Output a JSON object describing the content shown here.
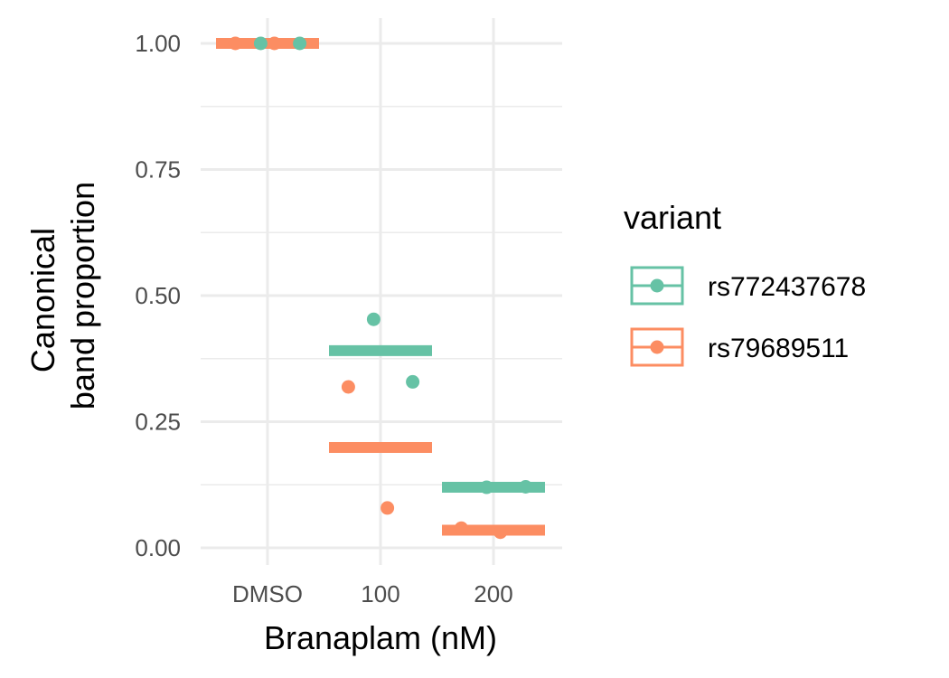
{
  "chart_data": {
    "type": "scatter",
    "title": "",
    "xlabel": "Branaplam (nM)",
    "ylabel_lines": [
      "Canonical",
      "band proportion"
    ],
    "categories": [
      "DMSO",
      "100",
      "200"
    ],
    "ylim": [
      0,
      1
    ],
    "y_ticks": [
      "0.00",
      "0.25",
      "0.50",
      "0.75",
      "1.00"
    ],
    "grid": true,
    "legend": {
      "title": "variant",
      "position": "right"
    },
    "series": [
      {
        "name": "rs772437678",
        "color": "#66c2a5",
        "points": [
          {
            "category": "DMSO",
            "y": 1.0
          },
          {
            "category": "DMSO",
            "y": 1.0
          },
          {
            "category": "100",
            "y": 0.453
          },
          {
            "category": "100",
            "y": 0.329
          },
          {
            "category": "200",
            "y": 0.12
          },
          {
            "category": "200",
            "y": 0.121
          }
        ],
        "means": [
          {
            "category": "DMSO",
            "y": 1.0
          },
          {
            "category": "100",
            "y": 0.391
          },
          {
            "category": "200",
            "y": 0.12
          }
        ]
      },
      {
        "name": "rs79689511",
        "color": "#fc8d62",
        "points": [
          {
            "category": "DMSO",
            "y": 1.0
          },
          {
            "category": "DMSO",
            "y": 1.0
          },
          {
            "category": "100",
            "y": 0.319
          },
          {
            "category": "100",
            "y": 0.079
          },
          {
            "category": "200",
            "y": 0.039
          },
          {
            "category": "200",
            "y": 0.031
          }
        ],
        "means": [
          {
            "category": "DMSO",
            "y": 1.0
          },
          {
            "category": "100",
            "y": 0.199
          },
          {
            "category": "200",
            "y": 0.035
          }
        ]
      }
    ]
  }
}
